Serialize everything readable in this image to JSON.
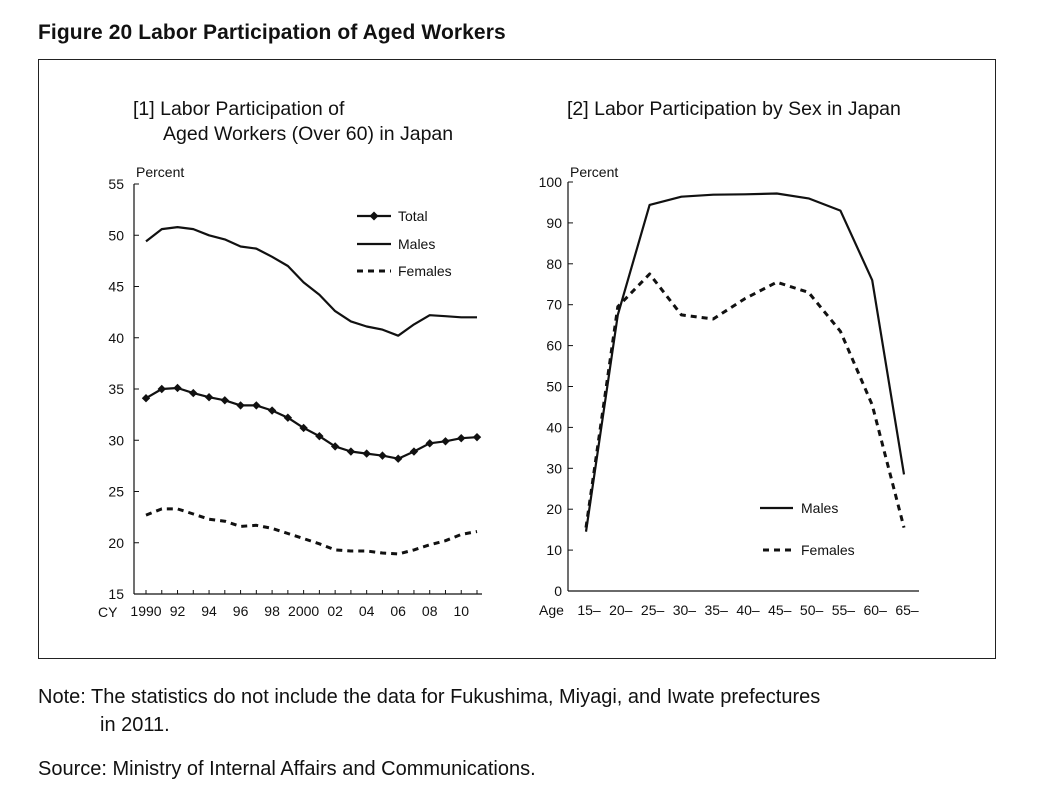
{
  "figure_title": "Figure 20   Labor Participation of Aged Workers",
  "note_line1": "Note: The statistics do not include the data for Fukushima, Miyagi, and Iwate prefectures",
  "note_line2": "in 2011.",
  "source": "Source: Ministry of Internal Affairs and Communications.",
  "chart_data": [
    {
      "type": "line",
      "title_line1": "[1] Labor Participation of",
      "title_line2": "Aged Workers (Over 60) in Japan",
      "ylabel": "Percent",
      "xlabel_prefix": "CY",
      "ylim": [
        15,
        55
      ],
      "yticks": [
        15,
        20,
        25,
        30,
        35,
        40,
        45,
        50,
        55
      ],
      "x": [
        1990,
        1991,
        1992,
        1993,
        1994,
        1995,
        1996,
        1997,
        1998,
        1999,
        2000,
        2001,
        2002,
        2003,
        2004,
        2005,
        2006,
        2007,
        2008,
        2009,
        2010,
        2011
      ],
      "xticks": [
        {
          "x": 1990,
          "label": "1990"
        },
        {
          "x": 1992,
          "label": "92"
        },
        {
          "x": 1994,
          "label": "94"
        },
        {
          "x": 1996,
          "label": "96"
        },
        {
          "x": 1998,
          "label": "98"
        },
        {
          "x": 2000,
          "label": "2000"
        },
        {
          "x": 2002,
          "label": "02"
        },
        {
          "x": 2004,
          "label": "04"
        },
        {
          "x": 2006,
          "label": "06"
        },
        {
          "x": 2008,
          "label": "08"
        },
        {
          "x": 2010,
          "label": "10"
        }
      ],
      "series": [
        {
          "name": "Total",
          "style": "solid-marker",
          "values": [
            34.1,
            35.0,
            35.1,
            34.6,
            34.2,
            33.9,
            33.4,
            33.4,
            32.9,
            32.2,
            31.2,
            30.4,
            29.4,
            28.9,
            28.7,
            28.5,
            28.2,
            28.9,
            29.7,
            29.9,
            30.2,
            30.3
          ]
        },
        {
          "name": "Males",
          "style": "solid",
          "values": [
            49.4,
            50.6,
            50.8,
            50.6,
            50.0,
            49.6,
            48.9,
            48.7,
            47.9,
            47.0,
            45.4,
            44.2,
            42.6,
            41.6,
            41.1,
            40.8,
            40.2,
            41.3,
            42.2,
            42.1,
            42.0,
            42.0
          ]
        },
        {
          "name": "Females",
          "style": "dashed",
          "values": [
            22.7,
            23.3,
            23.3,
            22.8,
            22.3,
            22.1,
            21.6,
            21.7,
            21.4,
            20.9,
            20.4,
            19.9,
            19.3,
            19.2,
            19.2,
            19.0,
            18.9,
            19.3,
            19.8,
            20.2,
            20.8,
            21.1
          ]
        }
      ]
    },
    {
      "type": "line",
      "title": "[2] Labor Participation by Sex in Japan",
      "ylabel": "Percent",
      "xlabel_prefix": "Age",
      "ylim": [
        0,
        100
      ],
      "yticks": [
        0,
        10,
        20,
        30,
        40,
        50,
        60,
        70,
        80,
        90,
        100
      ],
      "categories": [
        "15–",
        "20–",
        "25–",
        "30–",
        "35–",
        "40–",
        "45–",
        "50–",
        "55–",
        "60–",
        "65–"
      ],
      "series": [
        {
          "name": "Males",
          "style": "solid",
          "values": [
            14.5,
            67.5,
            94.4,
            96.4,
            96.9,
            97.0,
            97.2,
            96.0,
            93.0,
            76.0,
            28.5
          ]
        },
        {
          "name": "Females",
          "style": "dashed",
          "values": [
            15.5,
            69.5,
            77.5,
            67.5,
            66.5,
            71.5,
            75.5,
            73.0,
            63.5,
            45.5,
            15.5
          ]
        }
      ]
    }
  ]
}
